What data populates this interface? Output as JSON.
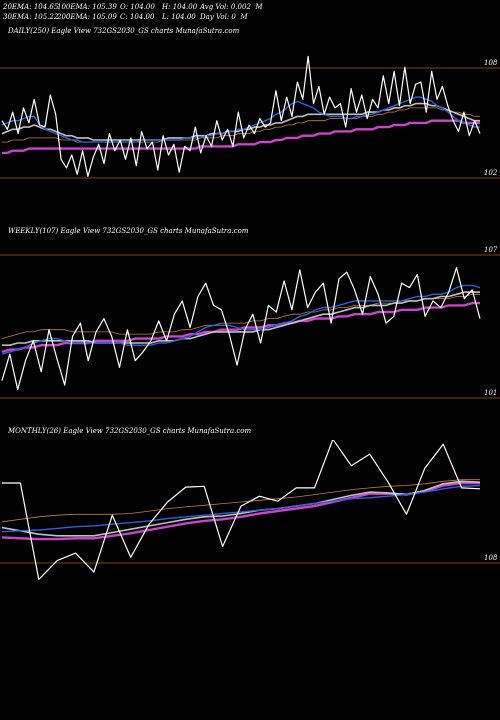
{
  "header": {
    "row1": [
      {
        "label": "20EMA: 104.65"
      },
      {
        "label": "100EMA: 105.39"
      },
      {
        "label": "O: 104.00"
      },
      {
        "label": "H: 104.00"
      },
      {
        "label": "Avg Vol: 0.002  M"
      }
    ],
    "row2": [
      {
        "label": "30EMA: 105.22"
      },
      {
        "label": "200EMA: 105.09"
      },
      {
        "label": "C: 104.00"
      },
      {
        "label": "L: 104.00"
      },
      {
        "label": "Day Vol: 0  M"
      }
    ]
  },
  "colors": {
    "background": "#000000",
    "price": "#ffffff",
    "ema_short": "#2f5fd8",
    "ema_long": "#cc44cc",
    "ema_mid": "#c0c0c0",
    "ema_alt": "#c08040",
    "level_line": "#b35a1f"
  },
  "chart_data": [
    {
      "type": "line",
      "title": "DAILY(250) Eagle  View  732GS2030_GS charts MunafaSutra.com",
      "levels": [
        {
          "value": "108"
        },
        {
          "value": "102"
        }
      ],
      "ylim": [
        101.5,
        108.5
      ],
      "series": [
        {
          "role": "price",
          "values": [
            105.2,
            104.8,
            105.6,
            104.6,
            105.8,
            105.1,
            106.2,
            105.0,
            104.9,
            106.4,
            105.5,
            103.4,
            103.0,
            103.6,
            102.7,
            103.8,
            102.6,
            103.5,
            104.1,
            103.2,
            104.6,
            103.8,
            104.3,
            103.4,
            104.4,
            103.1,
            104.7,
            103.9,
            104.2,
            102.9,
            104.5,
            103.6,
            104.1,
            102.8,
            104.0,
            103.8,
            104.9,
            103.7,
            104.5,
            104.0,
            105.2,
            104.3,
            104.8,
            104.0,
            105.6,
            104.4,
            105.0,
            104.6,
            105.3,
            104.9,
            105.1,
            106.6,
            105.2,
            106.3,
            105.4,
            107.0,
            106.2,
            108.2,
            106.0,
            106.8,
            105.5,
            106.3,
            105.8,
            106.0,
            104.9,
            106.7,
            105.6,
            106.4,
            105.3,
            106.2,
            105.8,
            107.3,
            106.0,
            107.5,
            105.9,
            107.7,
            106.0,
            106.9,
            107.0,
            105.6,
            107.5,
            106.2,
            106.8,
            105.9,
            105.2,
            104.7,
            105.6,
            104.5,
            105.2,
            104.6
          ]
        },
        {
          "role": "ema_short",
          "values": [
            105.0,
            105.1,
            105.2,
            105.2,
            105.3,
            105.4,
            105.4,
            105.0,
            104.8,
            104.7,
            104.6,
            104.5,
            104.4,
            104.3,
            104.3,
            104.2,
            104.2,
            104.2,
            104.2,
            104.2,
            104.2,
            104.2,
            104.2,
            104.2,
            104.2,
            104.2,
            104.3,
            104.3,
            104.3,
            104.3,
            104.3,
            104.3,
            104.3,
            104.3,
            104.4,
            104.4,
            104.4,
            104.4,
            104.5,
            104.5,
            104.6,
            104.6,
            104.7,
            104.7,
            104.8,
            104.8,
            104.9,
            105.0,
            105.1,
            105.2,
            105.3,
            105.5,
            105.6,
            105.8,
            106.0,
            106.1,
            106.0,
            105.9,
            105.8,
            105.6,
            105.5,
            105.4,
            105.4,
            105.4,
            105.3,
            105.3,
            105.4,
            105.4,
            105.5,
            105.5,
            105.6,
            105.7,
            105.8,
            105.9,
            106.0,
            106.1,
            106.2,
            106.3,
            106.3,
            106.2,
            106.1,
            105.9,
            105.8,
            105.6,
            105.4,
            105.2,
            105.1,
            105.0,
            104.9,
            104.9
          ]
        },
        {
          "role": "ema_mid",
          "values": [
            104.6,
            104.7,
            104.8,
            104.8,
            104.9,
            104.9,
            105.0,
            104.9,
            104.8,
            104.8,
            104.7,
            104.6,
            104.5,
            104.5,
            104.4,
            104.4,
            104.4,
            104.3,
            104.3,
            104.3,
            104.3,
            104.3,
            104.3,
            104.3,
            104.3,
            104.3,
            104.3,
            104.3,
            104.3,
            104.3,
            104.3,
            104.4,
            104.4,
            104.4,
            104.4,
            104.4,
            104.5,
            104.5,
            104.5,
            104.6,
            104.6,
            104.6,
            104.7,
            104.7,
            104.7,
            104.8,
            104.8,
            104.9,
            104.9,
            105.0,
            105.0,
            105.1,
            105.1,
            105.2,
            105.3,
            105.4,
            105.4,
            105.5,
            105.5,
            105.5,
            105.5,
            105.5,
            105.5,
            105.5,
            105.5,
            105.5,
            105.5,
            105.5,
            105.6,
            105.6,
            105.6,
            105.7,
            105.7,
            105.8,
            105.8,
            105.9,
            105.9,
            106.0,
            106.0,
            106.0,
            105.9,
            105.9,
            105.8,
            105.7,
            105.6,
            105.5,
            105.4,
            105.3,
            105.2,
            105.2
          ]
        },
        {
          "role": "ema_long",
          "values": [
            103.7,
            103.7,
            103.8,
            103.8,
            103.8,
            103.9,
            103.9,
            103.9,
            103.9,
            103.9,
            103.9,
            103.9,
            103.9,
            103.9,
            103.9,
            103.9,
            103.9,
            103.9,
            103.9,
            103.9,
            103.9,
            103.9,
            103.9,
            103.9,
            103.9,
            103.9,
            103.9,
            103.9,
            103.9,
            103.9,
            103.9,
            103.9,
            103.9,
            103.9,
            103.9,
            103.9,
            103.9,
            104.0,
            104.0,
            104.0,
            104.0,
            104.0,
            104.0,
            104.0,
            104.1,
            104.1,
            104.1,
            104.1,
            104.2,
            104.2,
            104.2,
            104.3,
            104.3,
            104.4,
            104.4,
            104.4,
            104.5,
            104.5,
            104.5,
            104.6,
            104.6,
            104.6,
            104.7,
            104.7,
            104.7,
            104.7,
            104.8,
            104.8,
            104.8,
            104.8,
            104.9,
            104.9,
            104.9,
            105.0,
            105.0,
            105.0,
            105.1,
            105.1,
            105.1,
            105.1,
            105.2,
            105.2,
            105.2,
            105.2,
            105.2,
            105.2,
            105.1,
            105.1,
            105.1,
            105.1
          ]
        },
        {
          "role": "ema_alt",
          "values": [
            104.2,
            104.2,
            104.3,
            104.3,
            104.3,
            104.4,
            104.4,
            104.4,
            104.4,
            104.4,
            104.4,
            104.3,
            104.3,
            104.3,
            104.2,
            104.2,
            104.2,
            104.2,
            104.2,
            104.2,
            104.2,
            104.2,
            104.2,
            104.2,
            104.2,
            104.2,
            104.2,
            104.2,
            104.2,
            104.2,
            104.3,
            104.3,
            104.3,
            104.3,
            104.3,
            104.3,
            104.3,
            104.4,
            104.4,
            104.4,
            104.4,
            104.5,
            104.5,
            104.5,
            104.6,
            104.6,
            104.6,
            104.7,
            104.7,
            104.8,
            104.8,
            104.9,
            104.9,
            105.0,
            105.0,
            105.1,
            105.1,
            105.2,
            105.2,
            105.2,
            105.2,
            105.3,
            105.3,
            105.3,
            105.3,
            105.3,
            105.3,
            105.4,
            105.4,
            105.4,
            105.5,
            105.5,
            105.6,
            105.6,
            105.7,
            105.7,
            105.8,
            105.8,
            105.8,
            105.8,
            105.8,
            105.8,
            105.7,
            105.7,
            105.6,
            105.6,
            105.5,
            105.5,
            105.4,
            105.4
          ]
        }
      ]
    },
    {
      "type": "line",
      "title": "WEEKLY(107) Eagle  View  732GS2030_GS charts MunafaSutra.com",
      "levels": [
        {
          "value": "107"
        },
        {
          "value": "101"
        }
      ],
      "ylim": [
        100.5,
        107.5
      ],
      "series": [
        {
          "role": "price",
          "values": [
            101.6,
            102.8,
            101.2,
            102.5,
            103.4,
            102.0,
            103.9,
            102.6,
            101.4,
            103.6,
            104.2,
            102.5,
            103.8,
            104.4,
            103.6,
            102.2,
            103.9,
            102.5,
            102.9,
            103.4,
            104.3,
            103.4,
            104.6,
            105.2,
            104.0,
            105.4,
            106.0,
            105.0,
            104.8,
            103.7,
            102.3,
            103.9,
            104.6,
            103.3,
            105.0,
            104.7,
            106.1,
            104.8,
            106.6,
            104.9,
            105.6,
            106.0,
            104.2,
            106.2,
            106.5,
            105.7,
            104.6,
            106.3,
            105.5,
            104.2,
            104.5,
            106.0,
            105.8,
            106.4,
            104.5,
            105.2,
            104.9,
            105.6,
            106.7,
            105.3,
            105.7,
            104.4
          ]
        },
        {
          "role": "ema_short",
          "values": [
            102.8,
            102.9,
            103.0,
            103.1,
            103.3,
            103.4,
            103.5,
            103.5,
            103.4,
            103.3,
            103.3,
            103.3,
            103.3,
            103.3,
            103.3,
            103.3,
            103.2,
            103.2,
            103.2,
            103.2,
            103.3,
            103.3,
            103.4,
            103.5,
            103.6,
            103.8,
            104.0,
            104.1,
            104.1,
            104.1,
            104.0,
            103.9,
            103.9,
            103.9,
            104.0,
            104.1,
            104.2,
            104.3,
            104.5,
            104.6,
            104.8,
            104.9,
            104.9,
            105.0,
            105.1,
            105.2,
            105.2,
            105.2,
            105.2,
            105.2,
            105.2,
            105.2,
            105.3,
            105.4,
            105.4,
            105.5,
            105.5,
            105.6,
            105.8,
            105.9,
            105.9,
            105.8
          ]
        },
        {
          "role": "ema_mid",
          "values": [
            103.2,
            103.2,
            103.3,
            103.3,
            103.4,
            103.4,
            103.4,
            103.4,
            103.4,
            103.4,
            103.4,
            103.4,
            103.3,
            103.3,
            103.3,
            103.3,
            103.3,
            103.3,
            103.3,
            103.3,
            103.4,
            103.4,
            103.4,
            103.5,
            103.5,
            103.6,
            103.7,
            103.8,
            103.8,
            103.8,
            103.8,
            103.8,
            103.8,
            103.9,
            103.9,
            104.0,
            104.1,
            104.2,
            104.3,
            104.4,
            104.5,
            104.6,
            104.6,
            104.7,
            104.8,
            104.9,
            104.9,
            105.0,
            105.0,
            105.0,
            105.1,
            105.1,
            105.2,
            105.2,
            105.3,
            105.3,
            105.4,
            105.4,
            105.5,
            105.6,
            105.6,
            105.6
          ]
        },
        {
          "role": "ema_long",
          "values": [
            102.9,
            103.0,
            103.0,
            103.1,
            103.1,
            103.2,
            103.2,
            103.2,
            103.3,
            103.3,
            103.3,
            103.3,
            103.4,
            103.4,
            103.4,
            103.4,
            103.4,
            103.5,
            103.5,
            103.5,
            103.5,
            103.6,
            103.6,
            103.6,
            103.7,
            103.7,
            103.8,
            103.8,
            103.9,
            103.9,
            103.9,
            104.0,
            104.0,
            104.0,
            104.1,
            104.1,
            104.2,
            104.2,
            104.3,
            104.3,
            104.4,
            104.4,
            104.4,
            104.5,
            104.5,
            104.6,
            104.6,
            104.6,
            104.7,
            104.7,
            104.7,
            104.8,
            104.8,
            104.8,
            104.9,
            104.9,
            104.9,
            105.0,
            105.0,
            105.0,
            105.1,
            105.1
          ]
        },
        {
          "role": "ema_alt",
          "values": [
            103.5,
            103.6,
            103.7,
            103.8,
            103.8,
            103.9,
            103.9,
            103.9,
            103.9,
            103.8,
            103.8,
            103.8,
            103.8,
            103.8,
            103.8,
            103.7,
            103.7,
            103.7,
            103.7,
            103.7,
            103.8,
            103.8,
            103.8,
            103.9,
            103.9,
            104.0,
            104.1,
            104.1,
            104.2,
            104.2,
            104.2,
            104.2,
            104.3,
            104.3,
            104.4,
            104.4,
            104.5,
            104.6,
            104.6,
            104.7,
            104.7,
            104.8,
            104.8,
            104.9,
            104.9,
            105.0,
            105.0,
            105.0,
            105.1,
            105.1,
            105.1,
            105.2,
            105.2,
            105.2,
            105.3,
            105.3,
            105.3,
            105.3,
            105.4,
            105.4,
            105.5,
            105.5
          ]
        }
      ]
    },
    {
      "type": "line",
      "title": "MONTHLY(26) Eagle  View  732GS2030_GS charts MunafaSutra.com",
      "levels": [
        {
          "value": "108"
        }
      ],
      "ylim": [
        94,
        114
      ],
      "series": [
        {
          "role": "price",
          "values": [
            110.0,
            110.0,
            98.3,
            100.6,
            101.5,
            99.2,
            106.1,
            101.0,
            105.0,
            107.7,
            109.5,
            109.6,
            102.3,
            107.2,
            108.4,
            107.8,
            109.4,
            109.4,
            115.3,
            112.1,
            113.5,
            110.1,
            106.2,
            111.8,
            114.7,
            109.4,
            109.3
          ]
        },
        {
          "role": "ema_short",
          "values": [
            104.1,
            104.2,
            104.3,
            104.5,
            104.7,
            104.8,
            105.0,
            105.2,
            105.4,
            105.7,
            105.9,
            106.1,
            106.3,
            106.5,
            106.7,
            106.9,
            107.2,
            107.5,
            107.8,
            108.1,
            108.2,
            108.4,
            108.6,
            108.9,
            109.3,
            109.6,
            109.7
          ]
        },
        {
          "role": "ema_mid",
          "values": [
            104.6,
            104.2,
            103.8,
            103.6,
            103.6,
            103.6,
            104.0,
            104.4,
            104.8,
            105.2,
            105.6,
            105.9,
            106.0,
            106.3,
            106.7,
            106.9,
            107.2,
            107.5,
            108.0,
            108.5,
            108.9,
            108.8,
            108.6,
            109.1,
            109.9,
            110.2,
            110.1
          ]
        },
        {
          "role": "ema_long",
          "values": [
            103.4,
            103.3,
            103.2,
            103.2,
            103.3,
            103.3,
            103.6,
            103.9,
            104.3,
            104.7,
            105.1,
            105.4,
            105.6,
            105.9,
            106.3,
            106.6,
            106.9,
            107.2,
            107.7,
            108.2,
            108.7,
            108.7,
            108.6,
            109.0,
            109.7,
            110.0,
            110.0
          ]
        },
        {
          "role": "ema_alt",
          "values": [
            105.3,
            105.6,
            105.9,
            106.1,
            106.2,
            106.2,
            106.2,
            106.3,
            106.6,
            106.9,
            107.1,
            107.3,
            107.5,
            107.7,
            107.9,
            108.1,
            108.3,
            108.6,
            108.9,
            109.2,
            109.4,
            109.6,
            109.7,
            109.9,
            110.2,
            110.4,
            110.4
          ]
        }
      ]
    }
  ]
}
